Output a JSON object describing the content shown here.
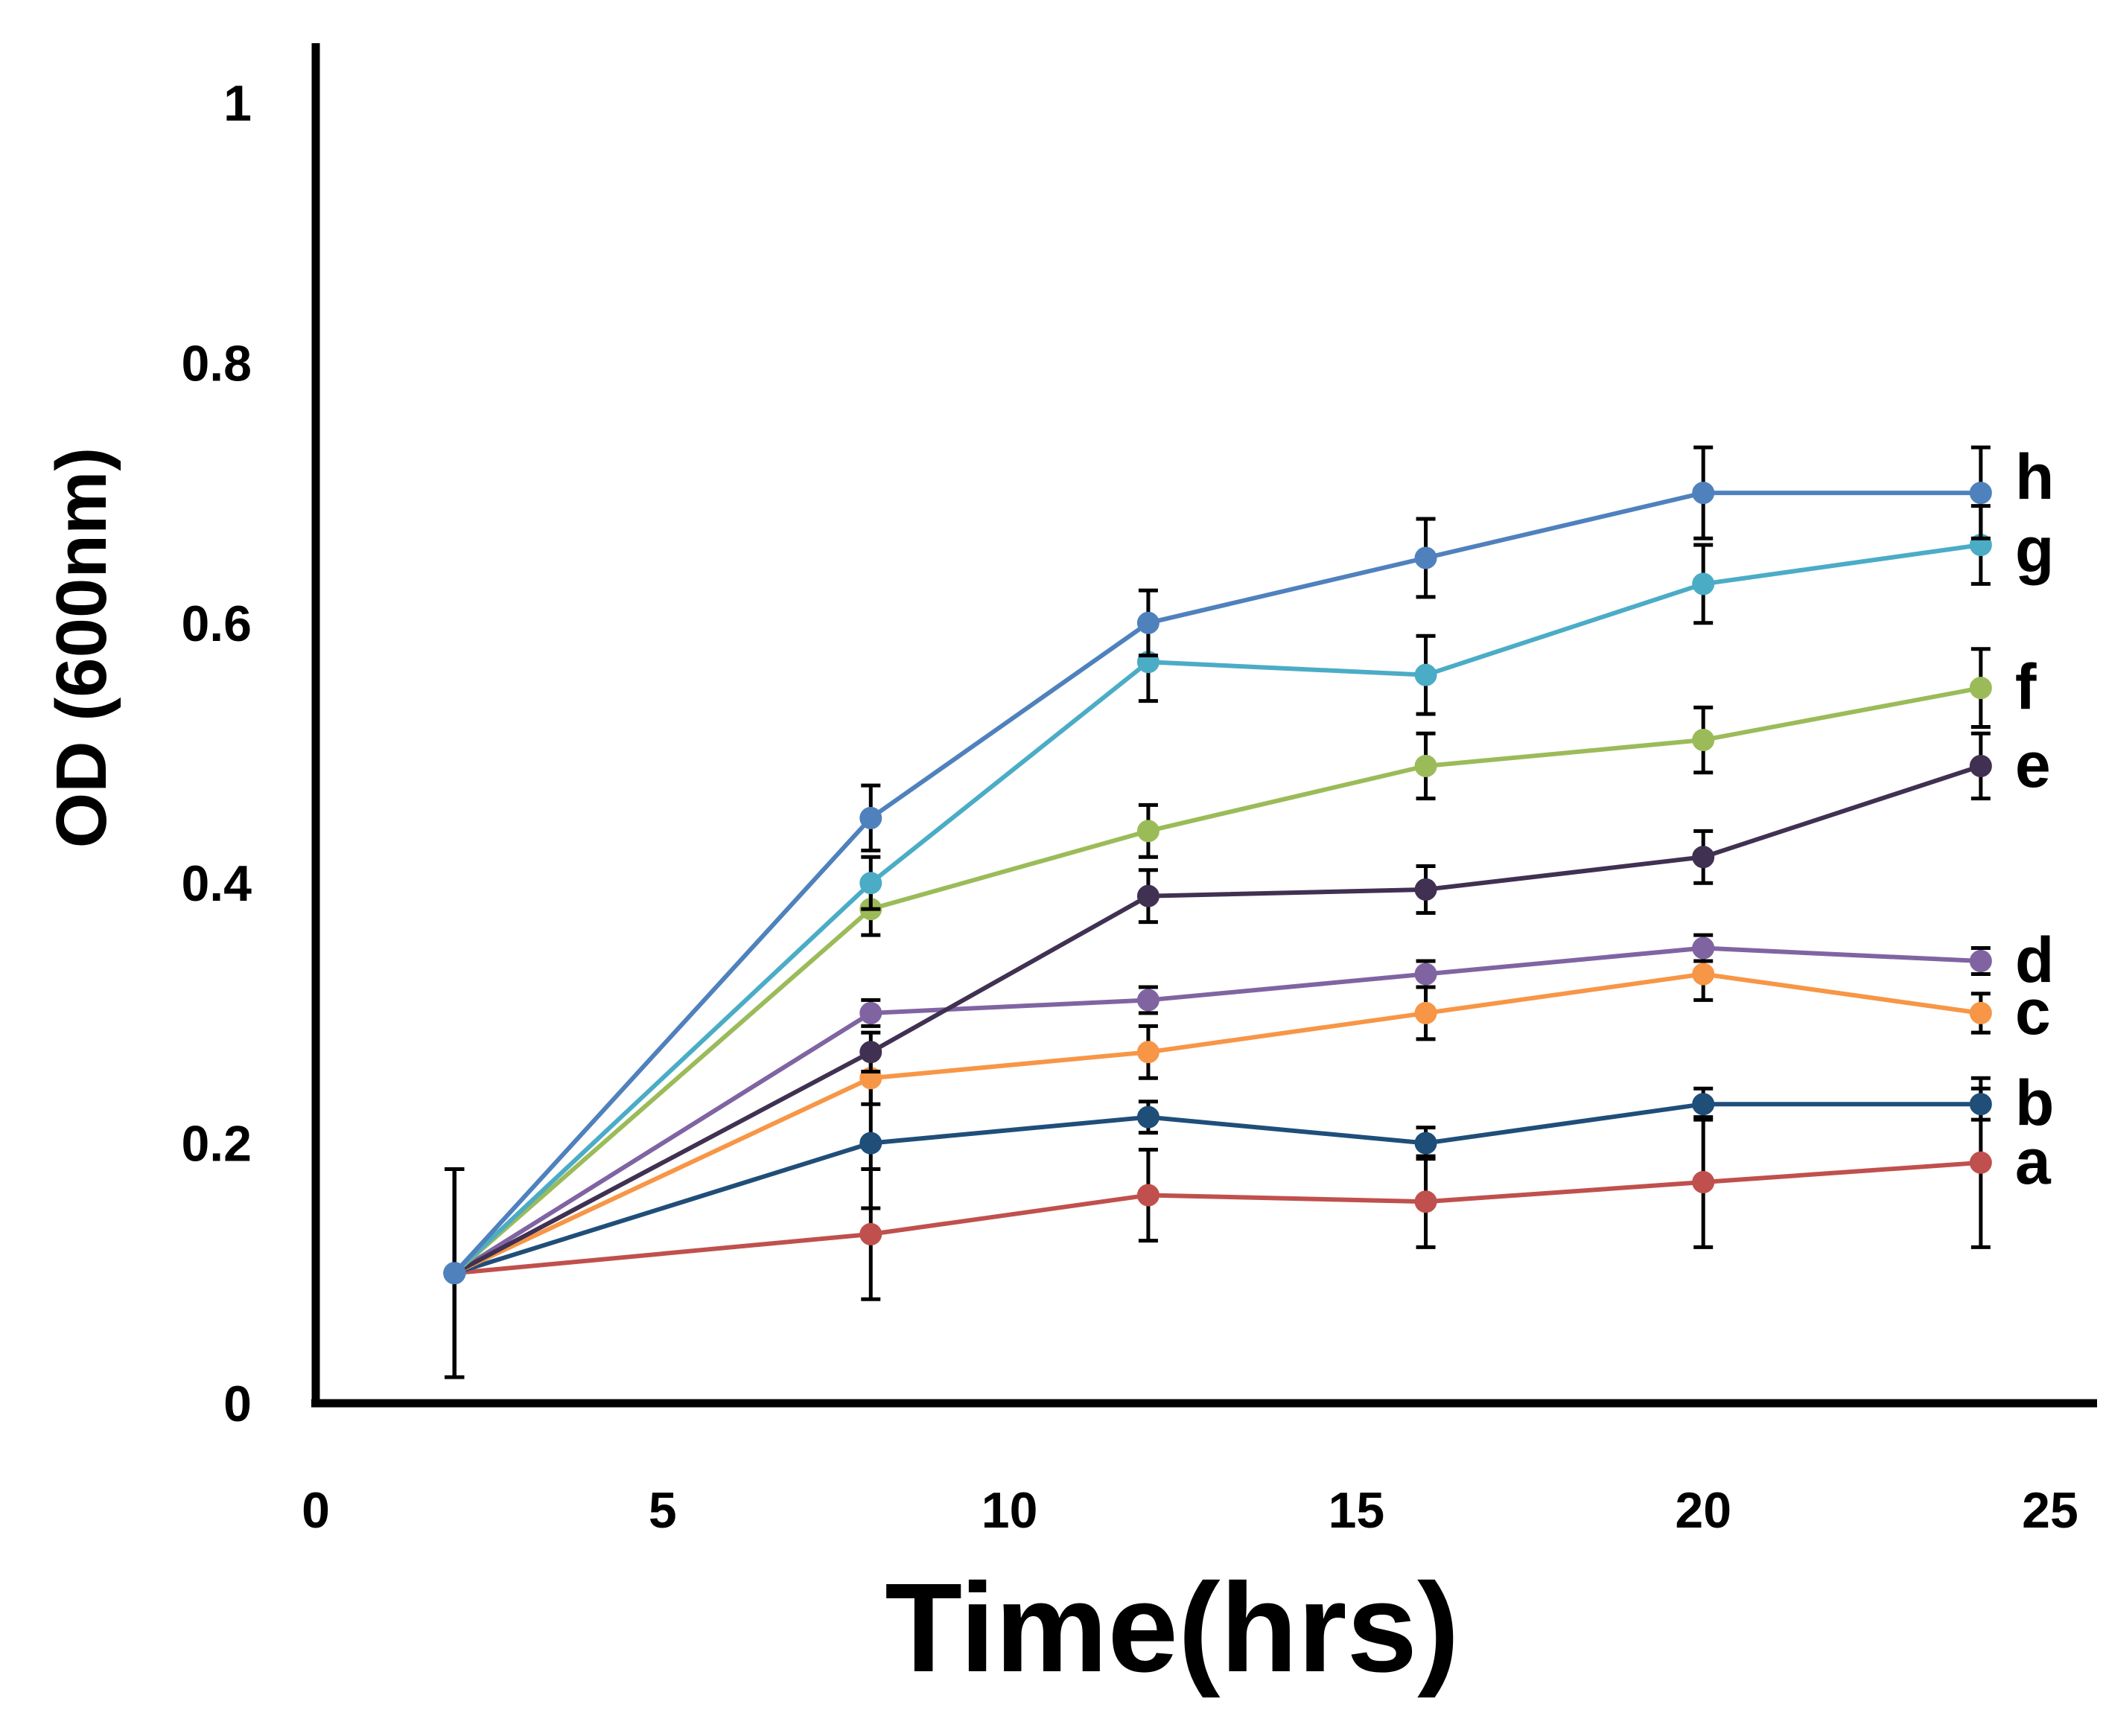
{
  "chart_data": {
    "type": "line",
    "title": "",
    "xlabel": "Time(hrs)",
    "ylabel": "OD (600nm)",
    "xlim": [
      0,
      25
    ],
    "ylim": [
      0,
      1.05
    ],
    "x_ticks": [
      0,
      5,
      10,
      15,
      20,
      25
    ],
    "x_tick_labels": [
      "0",
      "5",
      "10",
      "15",
      "20",
      "25"
    ],
    "y_ticks": [
      0,
      0.2,
      0.4,
      0.6,
      0.8,
      1
    ],
    "y_tick_labels": [
      "0",
      "0.2",
      "0.4",
      "0.6",
      "0.8",
      "1"
    ],
    "grid": false,
    "legend": "inline labels at right end of each series",
    "x": [
      2,
      8,
      12,
      16,
      20,
      24
    ],
    "series": [
      {
        "name": "a",
        "color": "#c0504d",
        "values": [
          0.1,
          0.13,
          0.16,
          0.155,
          0.17,
          0.185
        ],
        "errors": [
          0.08,
          0.05,
          0.035,
          0.035,
          0.05,
          0.065
        ]
      },
      {
        "name": "b",
        "color": "#1f4e79",
        "values": [
          0.1,
          0.2,
          0.22,
          0.2,
          0.23,
          0.23
        ],
        "errors": [
          0.08,
          0.05,
          0.012,
          0.012,
          0.012,
          0.012
        ]
      },
      {
        "name": "c",
        "color": "#f79646",
        "values": [
          0.1,
          0.25,
          0.27,
          0.3,
          0.33,
          0.3
        ],
        "errors": [
          0.08,
          0.02,
          0.02,
          0.02,
          0.02,
          0.015
        ]
      },
      {
        "name": "d",
        "color": "#8064a2",
        "values": [
          0.1,
          0.3,
          0.31,
          0.33,
          0.35,
          0.34
        ],
        "errors": [
          0.08,
          0.01,
          0.01,
          0.01,
          0.01,
          0.01
        ]
      },
      {
        "name": "e",
        "color": "#403152",
        "values": [
          0.1,
          0.27,
          0.39,
          0.395,
          0.42,
          0.49
        ],
        "errors": [
          0.08,
          0.015,
          0.02,
          0.018,
          0.02,
          0.025
        ]
      },
      {
        "name": "f",
        "color": "#9bbb59",
        "values": [
          0.1,
          0.38,
          0.44,
          0.49,
          0.51,
          0.55
        ],
        "errors": [
          0.08,
          0.02,
          0.02,
          0.025,
          0.025,
          0.03
        ]
      },
      {
        "name": "g",
        "color": "#4bacc6",
        "values": [
          0.1,
          0.4,
          0.57,
          0.56,
          0.63,
          0.66
        ],
        "errors": [
          0.08,
          0.02,
          0.03,
          0.03,
          0.03,
          0.03
        ]
      },
      {
        "name": "h",
        "color": "#4f81bd",
        "values": [
          0.1,
          0.45,
          0.6,
          0.65,
          0.7,
          0.7
        ],
        "errors": [
          0.08,
          0.025,
          0.025,
          0.03,
          0.035,
          0.035
        ]
      }
    ]
  }
}
